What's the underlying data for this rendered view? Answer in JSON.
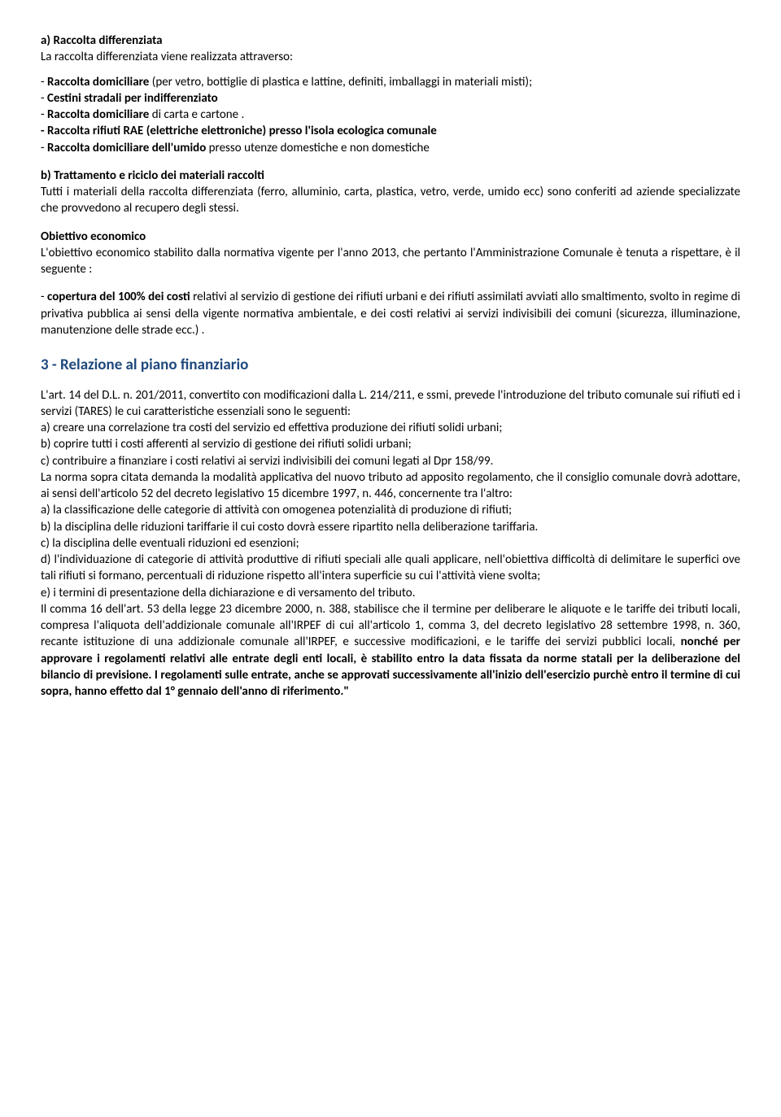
{
  "doc": {
    "sec_a": {
      "title": "a) Raccolta differenziata",
      "intro": "La raccolta differenziata viene realizzata attraverso:",
      "l1a": "- ",
      "l1b": "Raccolta domiciliare",
      "l1c": " (per vetro, bottiglie di plastica e lattine, definiti, imballaggi in materiali misti);",
      "l2a": "- ",
      "l2b": "Cestini stradali per indifferenziato",
      "l3a": "- ",
      "l3b": "Raccolta domiciliare",
      "l3c": " di carta e cartone .",
      "l4": "- Raccolta rifiuti RAE (elettriche elettroniche) presso l'isola ecologica comunale",
      "l5a": "- ",
      "l5b": "Raccolta domiciliare dell'umido",
      "l5c": " presso utenze domestiche e non domestiche"
    },
    "sec_b": {
      "title": "b) Trattamento e riciclo dei materiali raccolti",
      "body": "Tutti i materiali della raccolta differenziata (ferro, alluminio, carta, plastica, vetro, verde, umido ecc) sono conferiti ad aziende specializzate che provvedono al recupero degli stessi."
    },
    "obj": {
      "title": "Obiettivo economico",
      "body": "L'obiettivo economico stabilito dalla normativa vigente per l'anno 2013, che pertanto l'Amministrazione Comunale è tenuta a rispettare, è il seguente :",
      "cov_a": "- ",
      "cov_b": "copertura del 100% dei costi",
      "cov_c": " relativi al servizio di gestione dei rifiuti urbani e dei rifiuti assimilati avviati allo smaltimento, svolto in regime di privativa pubblica ai sensi della vigente normativa ambientale, e dei costi relativi ai servizi indivisibili dei comuni (sicurezza, illuminazione, manutenzione delle strade ecc.) ."
    },
    "sec3": {
      "heading": "3 - Relazione al piano finanziario",
      "p1": "L'art. 14 del D.L. n. 201/2011, convertito con modificazioni dalla L. 214/211, e ssmi, prevede l'introduzione del tributo comunale sui rifiuti ed i servizi (TARES) le cui caratteristiche essenziali sono le seguenti:",
      "a": "a) creare una correlazione tra costi del servizio ed effettiva produzione dei rifiuti solidi urbani;",
      "b": "b) coprire tutti i costi afferenti al servizio di gestione dei rifiuti solidi urbani;",
      "c": "c) contribuire a finanziare i costi relativi ai servizi indivisibili dei comuni legati al Dpr 158/99.",
      "p2a": "La norma sopra citata demanda la modalità applicativa del nuovo tributo ad apposito regolamento, che il consiglio comunale dovrà adottare, ai sensi dell'articolo 52 del decreto legislativo 15 dicembre ",
      "p2b": "1997, n. 446, concernente tra l'altro:",
      "da": "a) la classificazione delle categorie di attività con omogenea potenzialità di produzione di rifiuti;",
      "db": "b) la disciplina delle riduzioni tariffarie il cui costo dovrà essere ripartito nella deliberazione tariffaria.",
      "dc": "c) la disciplina delle eventuali riduzioni ed esenzioni;",
      "dd": "d) l'individuazione di categorie di attività produttive di rifiuti speciali alle quali applicare, nell'obiettiva difficoltà di delimitare le superfici ove tali rifiuti si formano, percentuali di riduzione rispetto all'intera superficie su cui l'attività viene svolta;",
      "de": "e) i termini di presentazione della dichiarazione e di versamento del tributo.",
      "p3a": "Il comma 16 dell'art. 53 della legge 23 dicembre 2000, n. 388, stabilisce che il termine per deliberare le aliquote e le tariffe dei tributi locali, compresa l'aliquota dell'addizionale comunale all'IRPEF di cui all'articolo 1, comma 3, del decreto legislativo 28 settembre 1998, n. 360, recante istituzione di una addizionale comunale all'IRPEF, e successive modificazioni, e le tariffe dei servizi pubblici locali, ",
      "p3b": "nonché per approvare i regolamenti relativi alle entrate degli enti locali, è stabilito entro la data fissata da norme statali per la deliberazione del bilancio di previsione. I regolamenti sulle entrate, anche se approvati successivamente all'inizio dell'esercizio purchè entro il termine di cui sopra, hanno effetto dal 1° gennaio dell'anno di riferimento.\""
    }
  }
}
